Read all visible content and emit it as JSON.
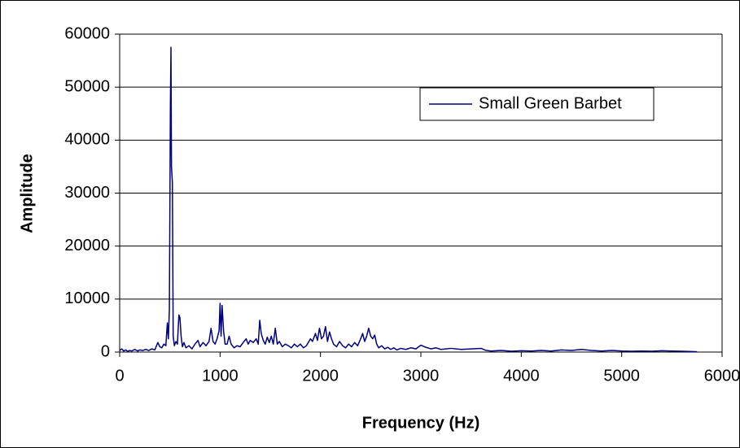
{
  "chart_data": {
    "type": "line",
    "xlabel": "Frequency (Hz)",
    "ylabel": "Amplitude",
    "x": [
      0,
      20,
      40,
      60,
      80,
      100,
      120,
      150,
      180,
      200,
      230,
      260,
      290,
      320,
      350,
      380,
      400,
      420,
      440,
      460,
      475,
      485,
      495,
      505,
      511,
      516,
      525,
      533,
      545,
      560,
      575,
      590,
      600,
      612,
      625,
      640,
      660,
      690,
      720,
      750,
      780,
      800,
      830,
      860,
      890,
      910,
      930,
      950,
      970,
      990,
      1000,
      1010,
      1020,
      1035,
      1050,
      1070,
      1090,
      1110,
      1140,
      1170,
      1200,
      1230,
      1260,
      1280,
      1300,
      1330,
      1360,
      1380,
      1395,
      1410,
      1430,
      1450,
      1470,
      1490,
      1510,
      1530,
      1550,
      1570,
      1590,
      1620,
      1650,
      1680,
      1710,
      1740,
      1770,
      1800,
      1830,
      1860,
      1900,
      1920,
      1950,
      1970,
      1990,
      2010,
      2030,
      2050,
      2070,
      2090,
      2110,
      2130,
      2160,
      2190,
      2220,
      2250,
      2280,
      2310,
      2340,
      2370,
      2400,
      2420,
      2440,
      2460,
      2480,
      2500,
      2520,
      2540,
      2560,
      2580,
      2610,
      2640,
      2670,
      2700,
      2730,
      2760,
      2800,
      2850,
      2900,
      2950,
      3000,
      3050,
      3100,
      3150,
      3200,
      3300,
      3400,
      3500,
      3600,
      3650,
      3700,
      3800,
      3900,
      4000,
      4100,
      4200,
      4300,
      4400,
      4500,
      4600,
      4700,
      4800,
      4900,
      5000,
      5100,
      5200,
      5300,
      5400,
      5500,
      5600,
      5700,
      5750
    ],
    "series": [
      {
        "name": "Small Green Barbet",
        "color": "#000080",
        "values": [
          300,
          600,
          200,
          400,
          150,
          300,
          200,
          500,
          200,
          400,
          300,
          500,
          300,
          600,
          400,
          1800,
          1000,
          800,
          1500,
          1200,
          5500,
          2500,
          8000,
          46000,
          57500,
          35000,
          32000,
          3000,
          1200,
          2000,
          1500,
          7000,
          6500,
          3000,
          1000,
          1800,
          800,
          1200,
          600,
          1500,
          2200,
          1000,
          1800,
          1200,
          2000,
          4500,
          2000,
          1500,
          2500,
          4000,
          9200,
          3000,
          8800,
          4000,
          1500,
          1500,
          3000,
          1500,
          800,
          1200,
          1000,
          1800,
          2500,
          1500,
          2200,
          1800,
          2500,
          1500,
          6000,
          3500,
          2200,
          1500,
          2800,
          1800,
          3000,
          1500,
          4500,
          1500,
          2000,
          1000,
          1500,
          1200,
          800,
          1500,
          1000,
          1500,
          800,
          1200,
          2500,
          2000,
          3500,
          2200,
          4500,
          2500,
          3000,
          4800,
          2000,
          3800,
          2500,
          1500,
          1000,
          2000,
          1200,
          800,
          1500,
          1000,
          1800,
          1200,
          2500,
          3500,
          2000,
          3000,
          4500,
          3000,
          2500,
          3200,
          1500,
          800,
          1200,
          600,
          900,
          500,
          800,
          400,
          700,
          500,
          800,
          600,
          1300,
          900,
          600,
          800,
          500,
          700,
          500,
          600,
          700,
          300,
          200,
          300,
          150,
          250,
          200,
          300,
          200,
          400,
          300,
          500,
          300,
          200,
          300,
          200,
          150,
          200,
          150,
          250,
          200,
          150,
          100,
          50
        ]
      }
    ],
    "xlim": [
      0,
      6000
    ],
    "xticks": [
      0,
      1000,
      2000,
      3000,
      4000,
      5000,
      6000
    ],
    "ylim": [
      0,
      60000
    ],
    "yticks": [
      0,
      10000,
      20000,
      30000,
      40000,
      50000,
      60000
    ],
    "grid": true,
    "legend": "upper right"
  }
}
